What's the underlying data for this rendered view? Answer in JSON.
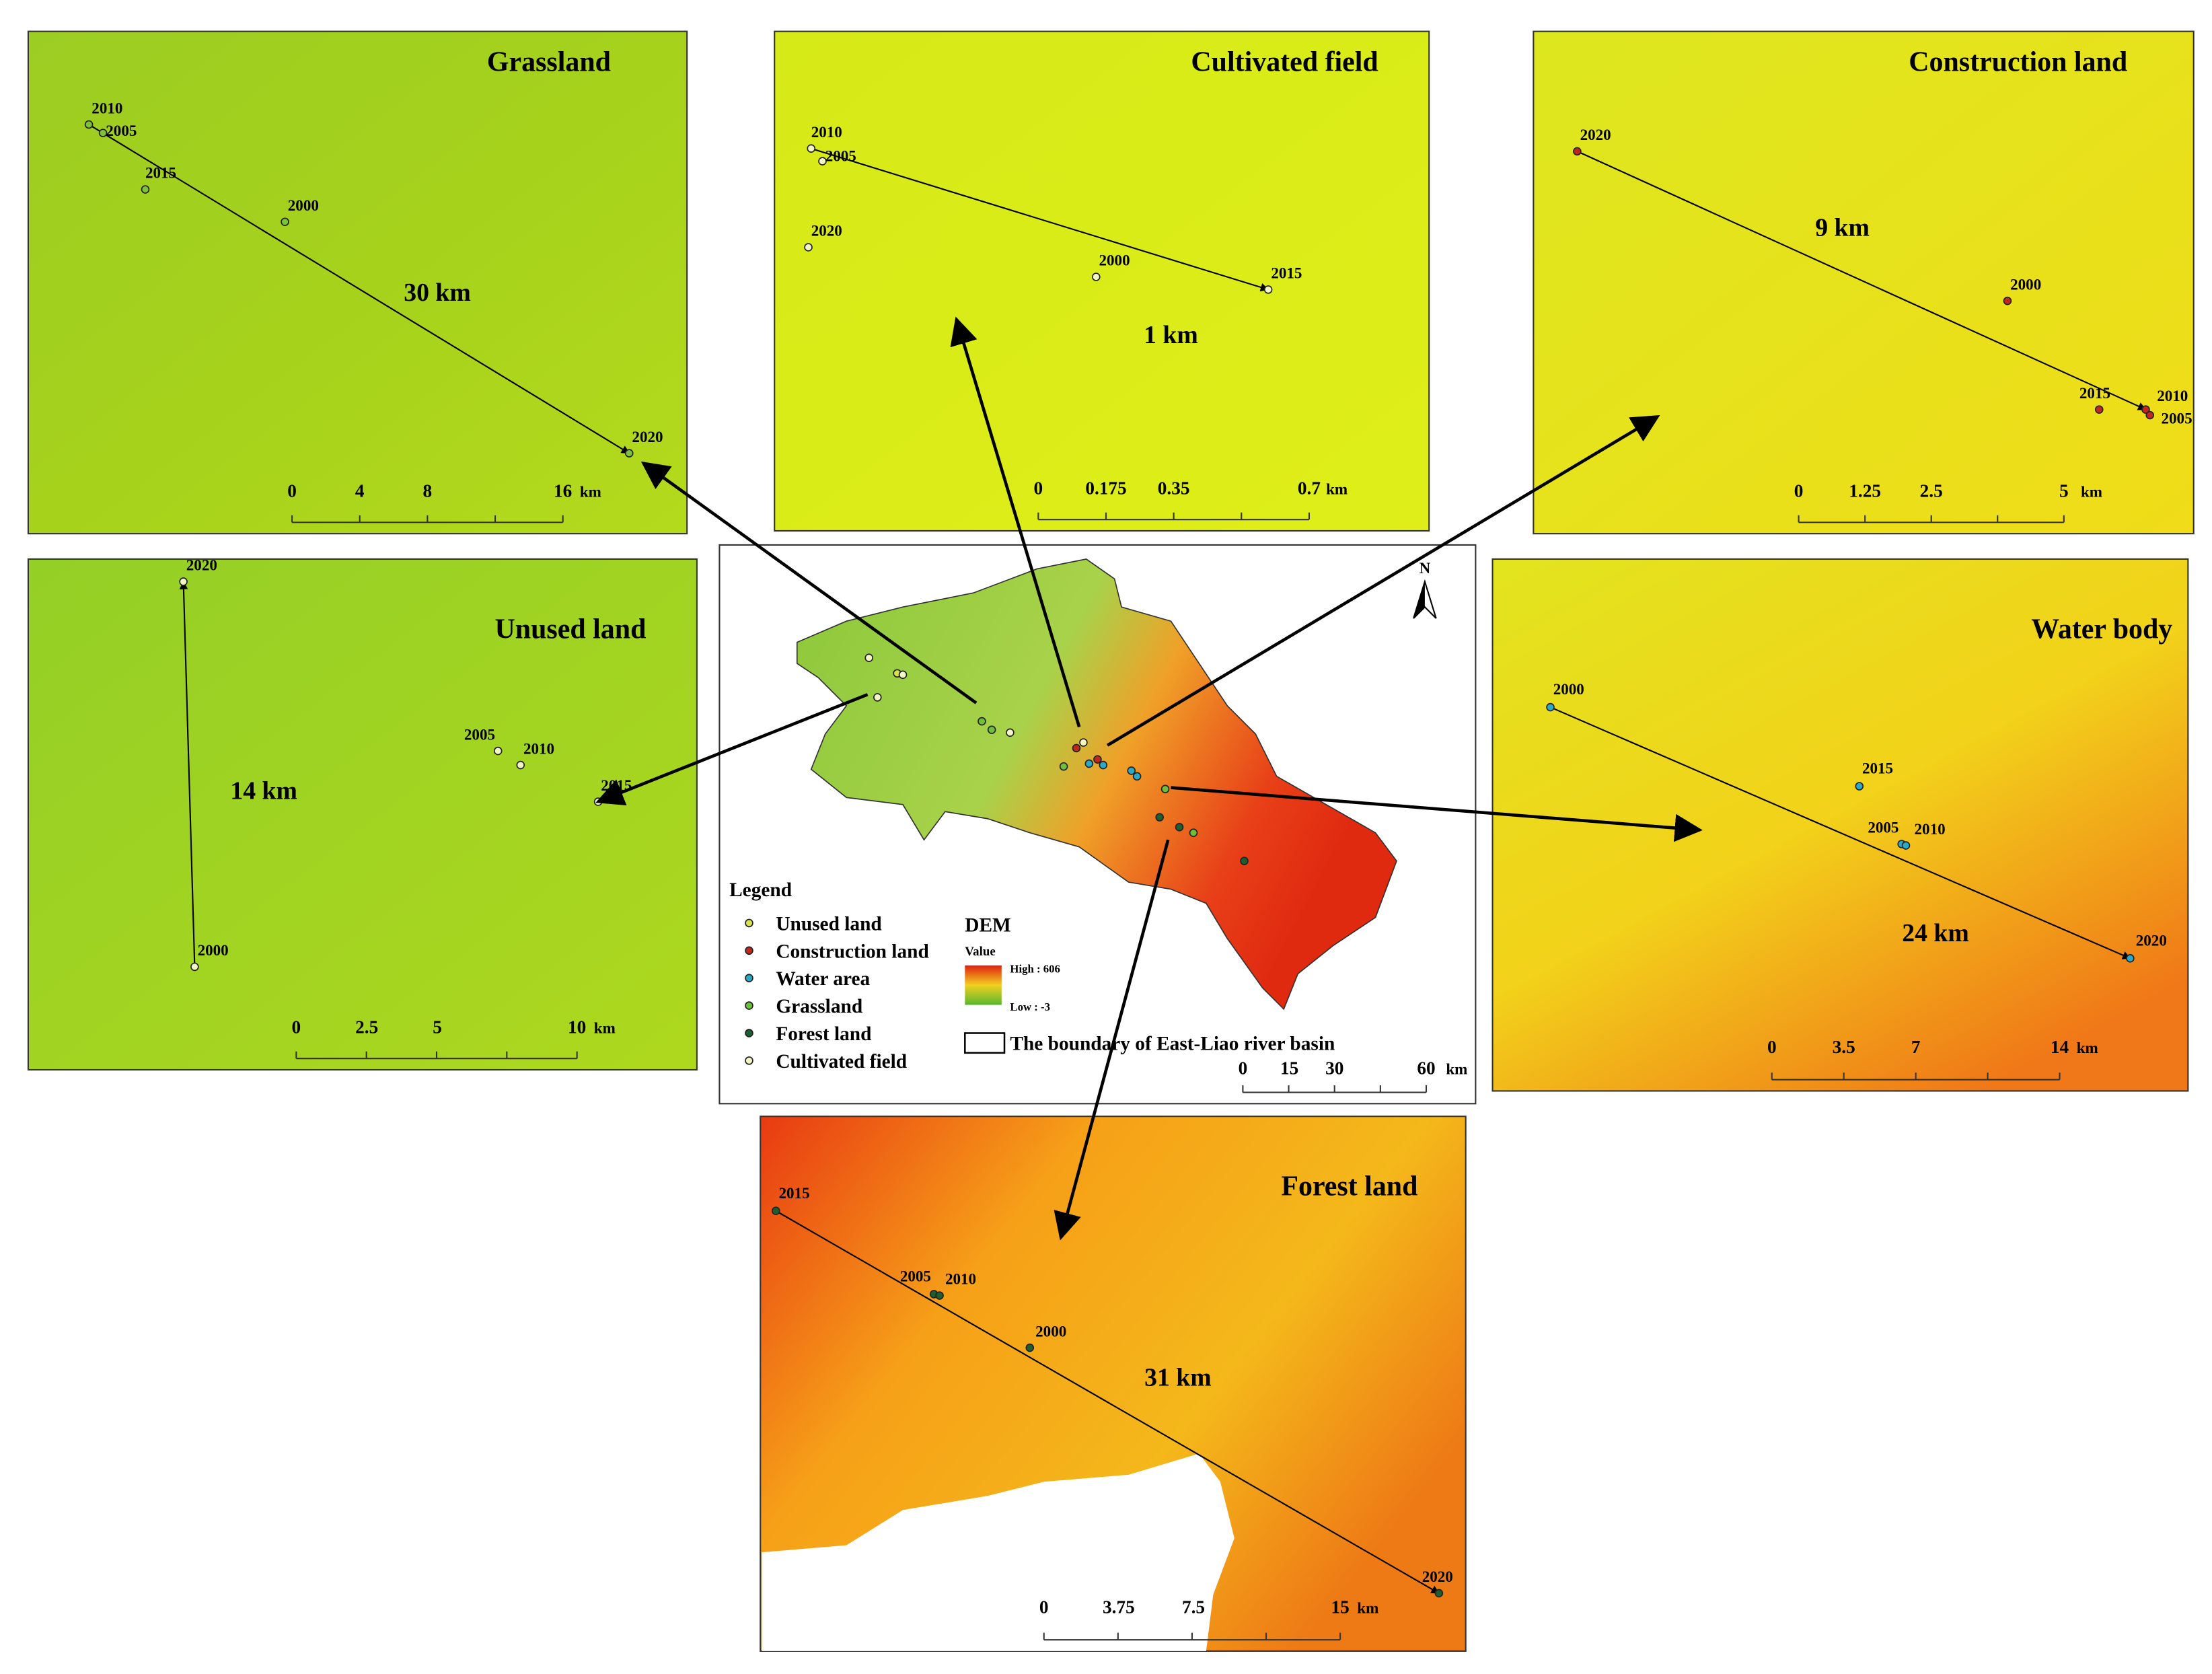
{
  "panels": [
    {
      "title": "Grassland",
      "distance": "30 km",
      "years": [
        "2010",
        "2005",
        "2015",
        "2000",
        "2020"
      ],
      "scale": [
        "0",
        "4",
        "8",
        "16"
      ],
      "unit": "km"
    },
    {
      "title": "Cultivated  field",
      "distance": "1 km",
      "years": [
        "2010",
        "2005",
        "2020",
        "2000",
        "2015"
      ],
      "scale": [
        "0",
        "0.175",
        "0.35",
        "0.7"
      ],
      "unit": "km"
    },
    {
      "title": "Construction  land",
      "distance": "9 km",
      "years": [
        "2020",
        "2000",
        "2015",
        "2010",
        "2005"
      ],
      "scale": [
        "0",
        "1.25",
        "2.5",
        "5"
      ],
      "unit": "km"
    },
    {
      "title": "Unused  land",
      "distance": "14 km",
      "years": [
        "2020",
        "2005",
        "2010",
        "2015",
        "2000"
      ],
      "scale": [
        "0",
        "2.5",
        "5",
        "10"
      ],
      "unit": "km"
    },
    {
      "title": "Water body",
      "distance": "24 km",
      "years": [
        "2000",
        "2015",
        "2005",
        "2010",
        "2020"
      ],
      "scale": [
        "0",
        "3.5",
        "7",
        "14"
      ],
      "unit": "km"
    },
    {
      "title": "Forest land",
      "distance": "31 km",
      "years": [
        "2015",
        "2005",
        "2010",
        "2000",
        "2020"
      ],
      "scale": [
        "0",
        "3.75",
        "7.5",
        "15"
      ],
      "unit": "km"
    }
  ],
  "overview": {
    "north": "N",
    "legend_title": "Legend",
    "legend": [
      "Unused land",
      "Construction land",
      "Water area",
      "Grassland",
      "Forest land",
      "Cultivated field"
    ],
    "dem_title": "DEM",
    "dem_value": "Value",
    "dem_high": "High : 606",
    "dem_low": "Low : -3",
    "boundary": "The boundary of East-Liao river basin",
    "scale": [
      "0",
      "15",
      "30",
      "60"
    ],
    "unit": "km"
  }
}
